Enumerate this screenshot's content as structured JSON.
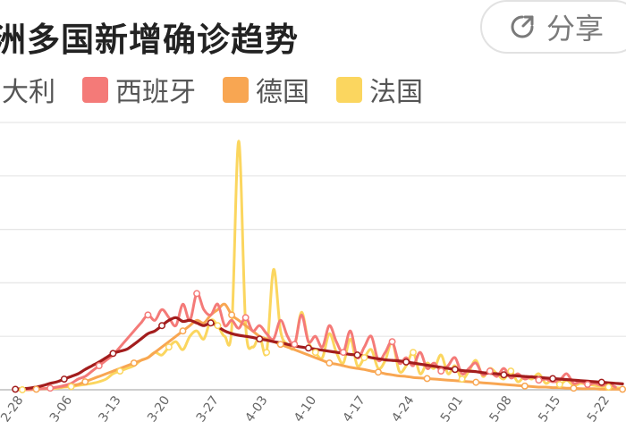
{
  "title": "洲多国新增确诊趋势",
  "share": {
    "label": "分享",
    "icon": "share-icon"
  },
  "legend": [
    {
      "label": "意大利",
      "color": "#a31d1d"
    },
    {
      "label": "西班牙",
      "color": "#f47a78"
    },
    {
      "label": "德国",
      "color": "#f8a652"
    },
    {
      "label": "法国",
      "color": "#fbd65f"
    }
  ],
  "chart_data": {
    "type": "line",
    "title": "洲多国新增确诊趋势",
    "x_tick_labels": [
      "2-28",
      "3-06",
      "3-13",
      "3-20",
      "3-27",
      "4-03",
      "4-10",
      "4-17",
      "4-24",
      "5-01",
      "5-08",
      "5-15",
      "5-22"
    ],
    "x_range_index": [
      -2.2,
      87.5
    ],
    "ylim": [
      0,
      5
    ],
    "y_ticks": [
      0,
      1,
      2,
      3,
      4,
      5
    ],
    "grid": true,
    "legend_position": "top",
    "series": [
      {
        "name": "意大利",
        "color": "#a31d1d",
        "values": [
          0.01,
          0.02,
          0.03,
          0.05,
          0.08,
          0.12,
          0.15,
          0.2,
          0.25,
          0.3,
          0.38,
          0.45,
          0.52,
          0.6,
          0.68,
          0.72,
          0.76,
          0.85,
          0.95,
          1.05,
          1.1,
          1.2,
          1.3,
          1.35,
          1.28,
          1.3,
          1.25,
          1.2,
          1.25,
          1.18,
          1.1,
          1.05,
          1.02,
          1.0,
          0.98,
          0.95,
          0.93,
          0.9,
          0.88,
          0.85,
          0.82,
          0.8,
          0.78,
          0.76,
          0.74,
          0.72,
          0.7,
          0.68,
          0.66,
          0.65,
          0.63,
          0.6,
          0.58,
          0.56,
          0.55,
          0.54,
          0.52,
          0.5,
          0.48,
          0.46,
          0.44,
          0.42,
          0.4,
          0.38,
          0.36,
          0.35,
          0.34,
          0.32,
          0.31,
          0.3,
          0.28,
          0.27,
          0.26,
          0.25,
          0.24,
          0.23,
          0.22,
          0.21,
          0.2,
          0.19,
          0.18,
          0.17,
          0.16,
          0.15,
          0.14,
          0.13,
          0.12,
          0.11
        ]
      },
      {
        "name": "西班牙",
        "color": "#f47a78",
        "values": [
          0.0,
          0.0,
          0.01,
          0.01,
          0.02,
          0.03,
          0.05,
          0.08,
          0.12,
          0.2,
          0.25,
          0.35,
          0.45,
          0.55,
          0.65,
          0.8,
          0.95,
          1.1,
          1.25,
          1.4,
          1.3,
          1.5,
          1.35,
          1.2,
          1.6,
          1.3,
          1.8,
          1.5,
          1.4,
          1.6,
          1.2,
          1.3,
          1.15,
          1.35,
          1.1,
          1.2,
          1.05,
          0.95,
          1.3,
          1.0,
          0.85,
          1.4,
          0.9,
          1.0,
          0.8,
          1.2,
          0.9,
          0.7,
          1.1,
          0.6,
          0.8,
          1.0,
          0.55,
          0.7,
          0.9,
          0.5,
          0.6,
          0.45,
          0.7,
          0.4,
          0.5,
          0.35,
          0.45,
          0.6,
          0.3,
          0.4,
          0.5,
          0.28,
          0.35,
          0.25,
          0.4,
          0.22,
          0.3,
          0.2,
          0.25,
          0.18,
          0.2,
          0.15,
          0.18,
          0.3,
          0.12,
          0.15,
          0.1,
          0.12,
          0.08,
          0.1,
          0.05
        ]
      },
      {
        "name": "德国",
        "color": "#f8a652",
        "values": [
          0.0,
          0.0,
          0.0,
          0.01,
          0.02,
          0.03,
          0.05,
          0.06,
          0.08,
          0.1,
          0.15,
          0.2,
          0.25,
          0.3,
          0.35,
          0.4,
          0.45,
          0.5,
          0.55,
          0.6,
          0.7,
          0.8,
          0.9,
          1.0,
          1.1,
          1.2,
          1.3,
          1.25,
          1.4,
          1.5,
          1.6,
          1.4,
          1.3,
          1.2,
          1.1,
          1.0,
          0.95,
          0.9,
          0.85,
          0.8,
          0.75,
          0.7,
          0.65,
          0.6,
          0.55,
          0.5,
          0.48,
          0.45,
          0.42,
          0.4,
          0.38,
          0.35,
          0.33,
          0.3,
          0.28,
          0.26,
          0.25,
          0.23,
          0.22,
          0.21,
          0.2,
          0.19,
          0.18,
          0.17,
          0.16,
          0.15,
          0.14,
          0.13,
          0.12,
          0.11,
          0.1,
          0.09,
          0.08,
          0.07,
          0.06,
          0.05,
          0.05,
          0.04,
          0.04,
          0.03,
          0.03,
          0.02,
          0.02,
          0.02,
          0.01,
          0.01,
          0.01,
          0.01
        ]
      },
      {
        "name": "法国",
        "color": "#fbd65f",
        "values": [
          0.0,
          0.0,
          0.01,
          0.01,
          0.02,
          0.02,
          0.03,
          0.05,
          0.06,
          0.08,
          0.1,
          0.12,
          0.15,
          0.2,
          0.3,
          0.35,
          0.4,
          0.45,
          0.55,
          0.6,
          0.7,
          0.65,
          0.8,
          0.9,
          0.75,
          1.0,
          1.1,
          0.95,
          1.3,
          1.2,
          1.0,
          1.15,
          4.65,
          1.2,
          0.8,
          1.0,
          0.7,
          2.25,
          1.1,
          0.85,
          0.8,
          1.45,
          0.9,
          0.7,
          0.6,
          1.05,
          0.7,
          0.5,
          0.95,
          0.45,
          0.6,
          0.75,
          0.4,
          0.55,
          0.9,
          0.35,
          0.45,
          0.7,
          0.3,
          0.5,
          0.4,
          0.65,
          0.3,
          0.45,
          0.2,
          0.35,
          0.55,
          0.25,
          0.4,
          0.3,
          0.2,
          0.35,
          0.15,
          0.25,
          0.2,
          0.3,
          0.12,
          0.2,
          0.1,
          0.18,
          0.08,
          0.12,
          0.1,
          0.08,
          0.06,
          0.05,
          0.04,
          0.03
        ]
      }
    ]
  }
}
